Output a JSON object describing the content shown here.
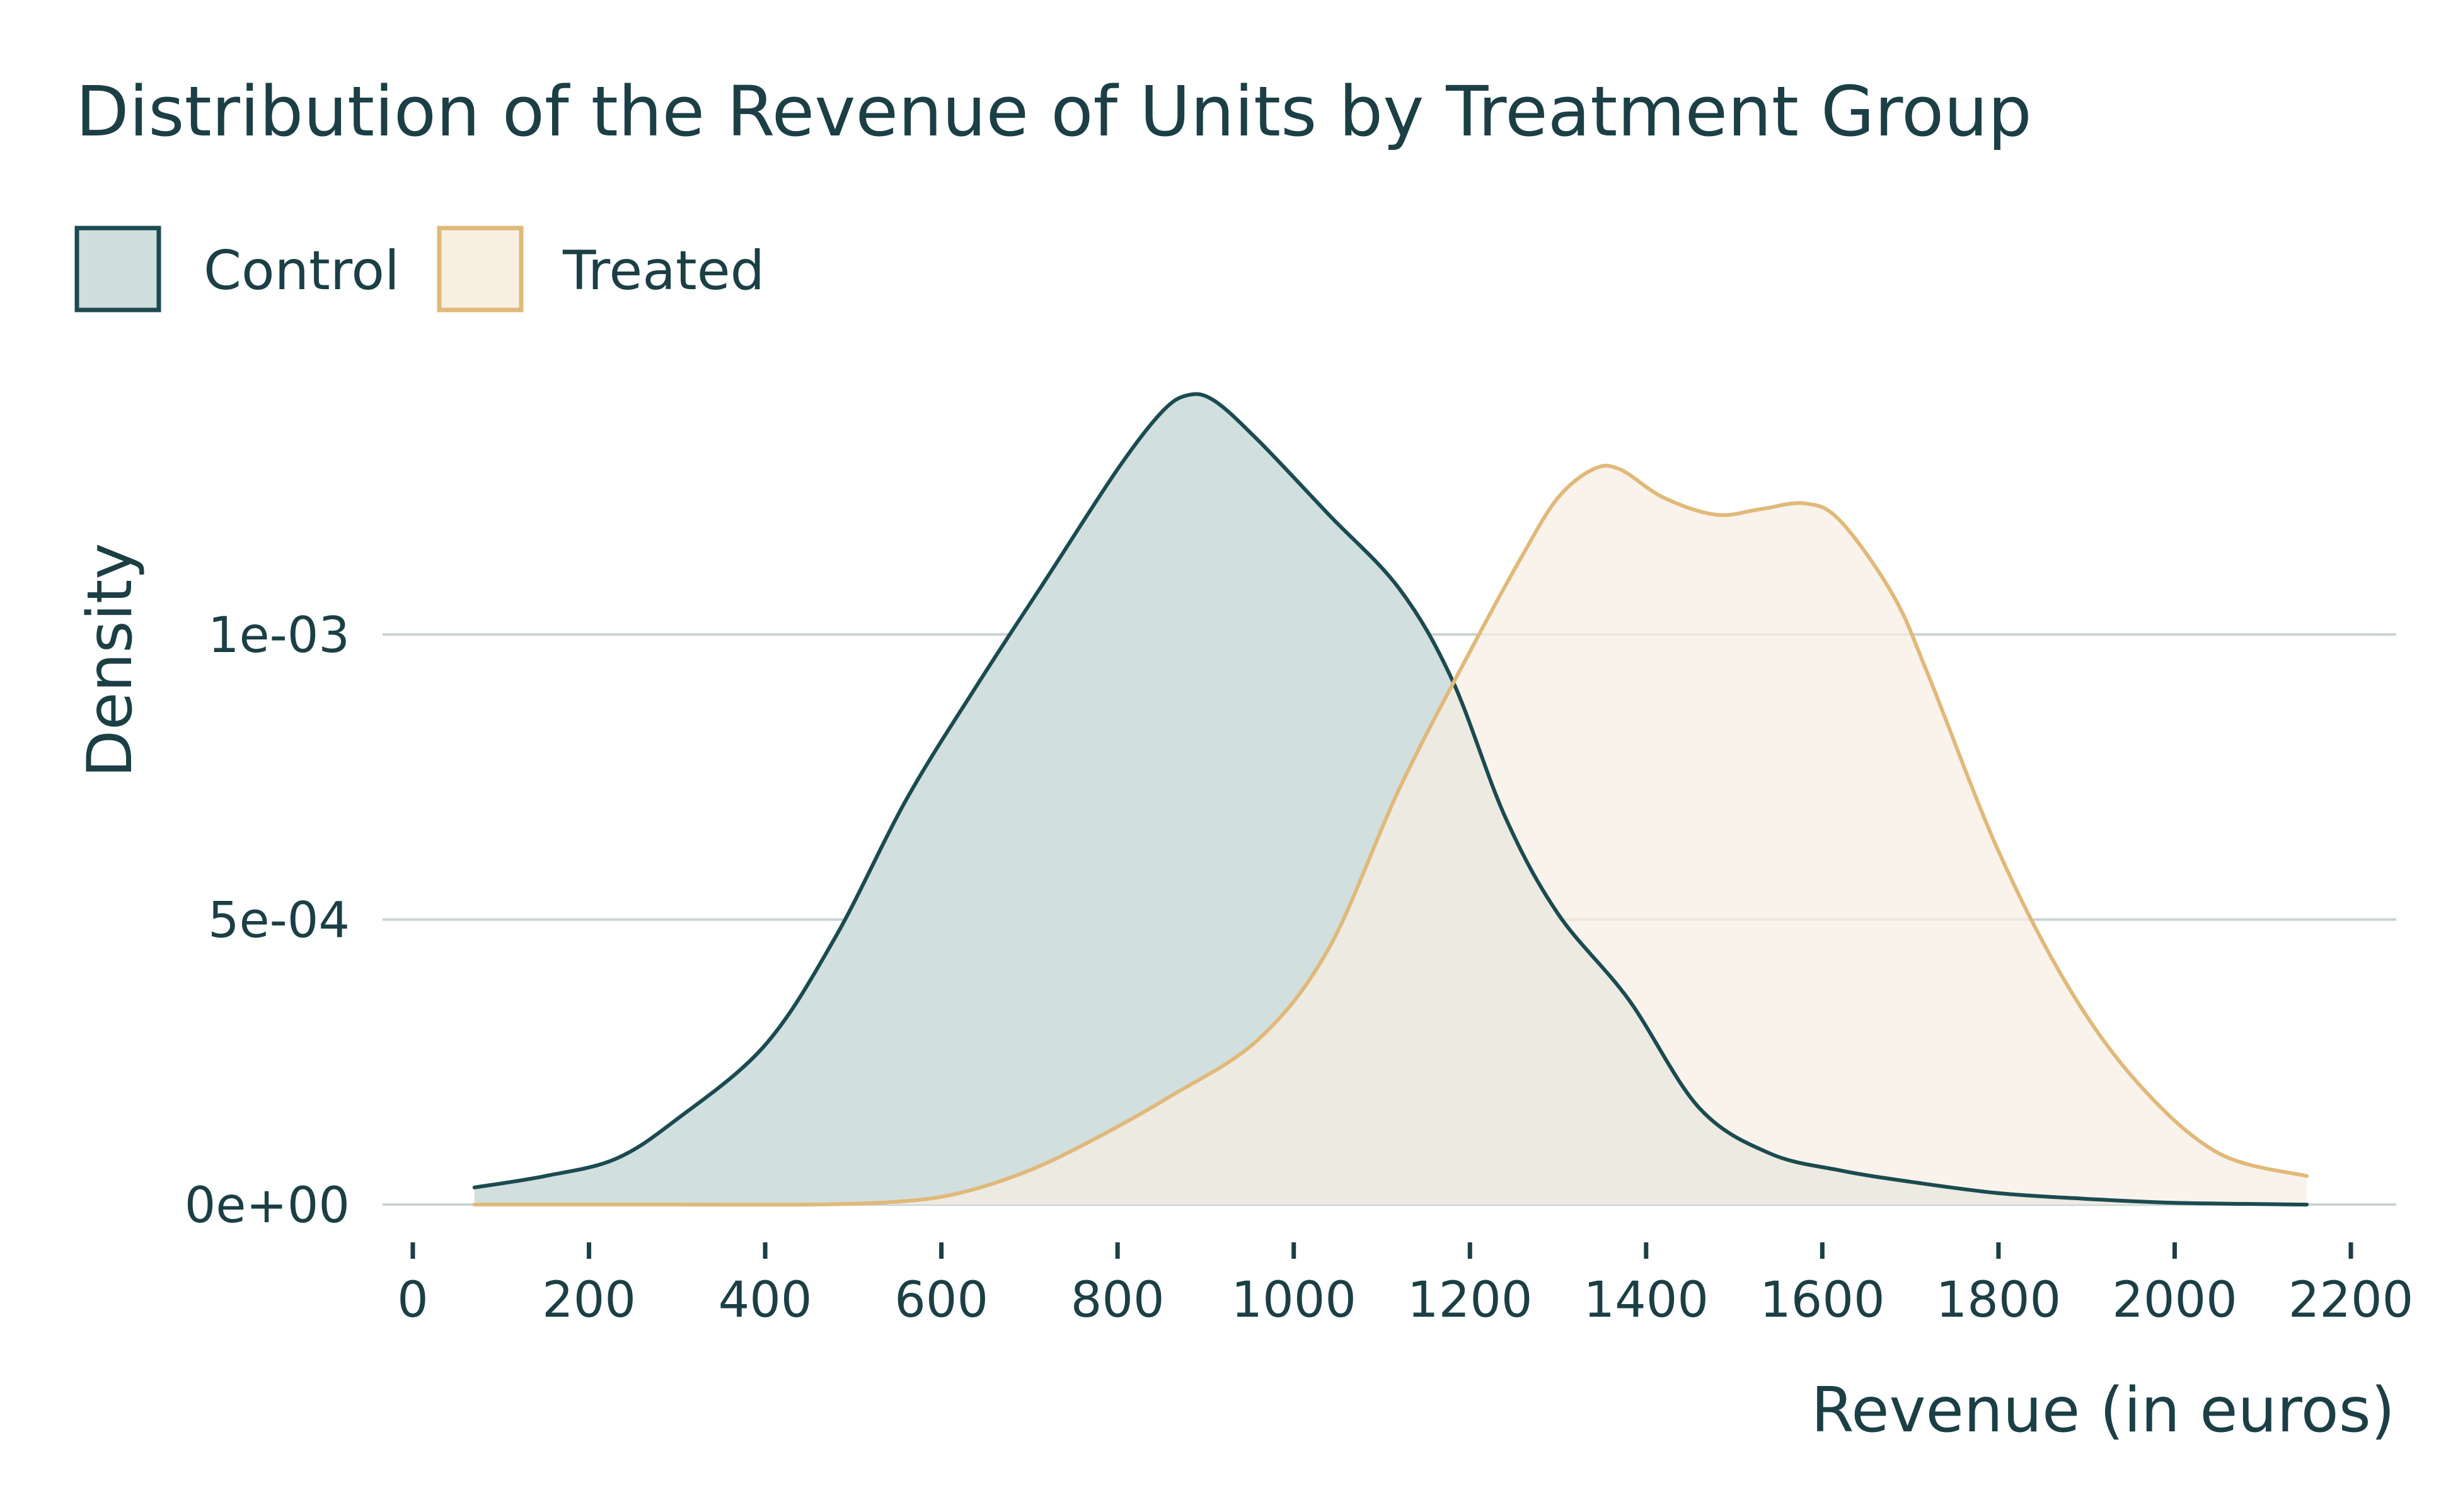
{
  "chart_data": {
    "type": "area",
    "title": "Distribution of the Revenue of Units by Treatment Group",
    "xlabel": "Revenue (in euros)",
    "ylabel": "Density",
    "xlim": [
      0,
      2200
    ],
    "ylim": [
      0,
      0.00145
    ],
    "x_ticks": [
      0,
      200,
      400,
      600,
      800,
      1000,
      1200,
      1400,
      1600,
      1800,
      2000,
      2200
    ],
    "x_tick_labels": [
      "0",
      "200",
      "400",
      "600",
      "800",
      "1000",
      "1200",
      "1400",
      "1600",
      "1800",
      "2000",
      "2200"
    ],
    "y_ticks": [
      0,
      0.0005,
      0.001
    ],
    "y_tick_labels": [
      "0e+00",
      "5e-04",
      "1e-03"
    ],
    "grid": "horizontal",
    "legend_position": "top-left",
    "series": [
      {
        "name": "Control",
        "stroke": "#1b4b50",
        "fill": "#d0dedd",
        "x": [
          70,
          150,
          230,
          300,
          400,
          480,
          560,
          640,
          720,
          800,
          850,
          880,
          910,
          960,
          1040,
          1120,
          1180,
          1240,
          1300,
          1380,
          1460,
          1540,
          1620,
          1700,
          1800,
          1900,
          2000,
          2150
        ],
        "y": [
          3e-05,
          5e-05,
          8e-05,
          0.00015,
          0.00028,
          0.00047,
          0.00071,
          0.00091,
          0.0011,
          0.00129,
          0.00139,
          0.00142,
          0.00141,
          0.00134,
          0.00121,
          0.00108,
          0.00092,
          0.00068,
          0.00051,
          0.00036,
          0.00017,
          9e-05,
          6e-05,
          4e-05,
          2e-05,
          1e-05,
          3e-06,
          0.0
        ]
      },
      {
        "name": "Treated",
        "stroke": "#e0b97a",
        "fill": "#f8efe3",
        "x": [
          70,
          300,
          450,
          550,
          620,
          700,
          780,
          860,
          960,
          1040,
          1120,
          1200,
          1260,
          1300,
          1340,
          1370,
          1420,
          1480,
          1530,
          1580,
          1620,
          1680,
          1720,
          1800,
          1880,
          1960,
          2050,
          2150
        ],
        "y": [
          0.0,
          0.0,
          0.0,
          5e-06,
          2e-05,
          6e-05,
          0.00012,
          0.00019,
          0.00029,
          0.00045,
          0.00073,
          0.00097,
          0.00114,
          0.00124,
          0.00129,
          0.00129,
          0.00124,
          0.00121,
          0.00122,
          0.00123,
          0.0012,
          0.00107,
          0.00093,
          0.00062,
          0.00038,
          0.00021,
          9e-05,
          5e-05
        ]
      }
    ]
  },
  "legend": {
    "items": [
      {
        "label": "Control",
        "stroke": "#1b4b50",
        "fill": "#d0dedd"
      },
      {
        "label": "Treated",
        "stroke": "#e0b97a",
        "fill": "#f8efe3"
      }
    ]
  },
  "colors": {
    "text": "#1b3f45",
    "grid": "#c8d3d2",
    "background": "#ffffff"
  }
}
